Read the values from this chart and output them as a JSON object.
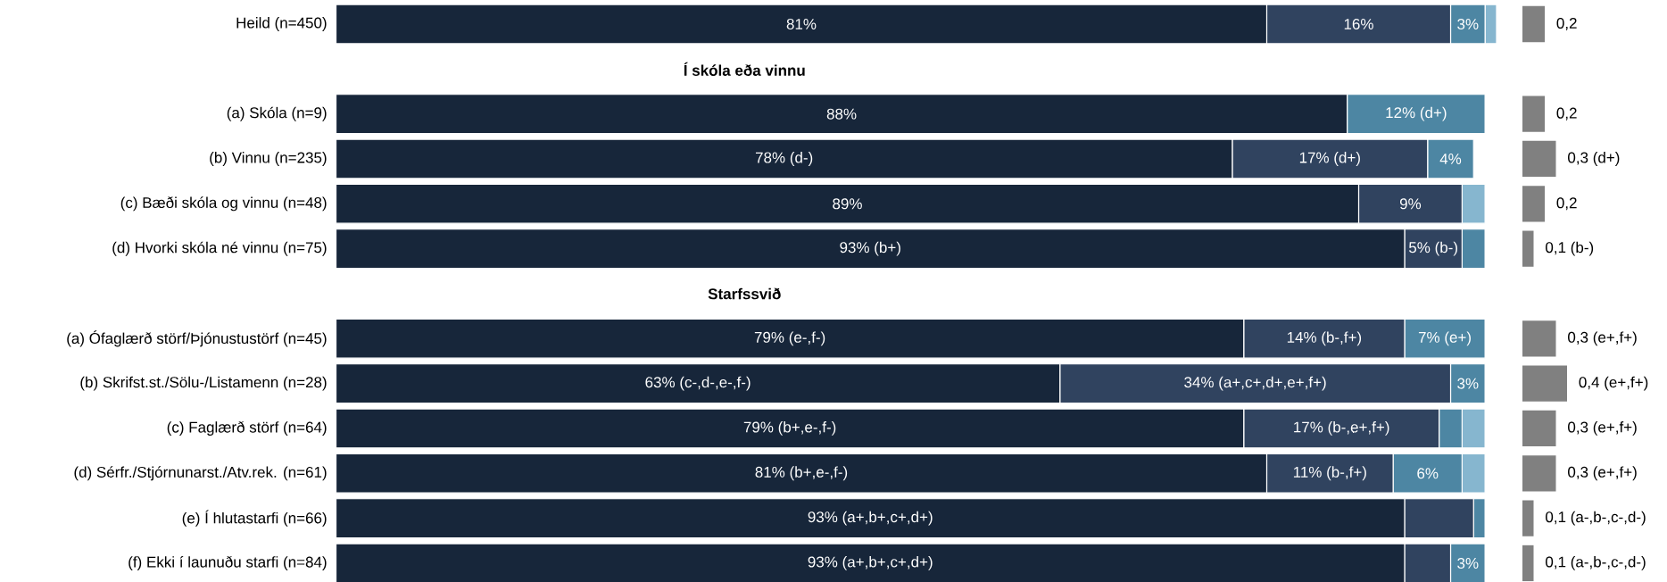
{
  "chart_data": [
    {
      "type": "bar",
      "orientation": "horizontal",
      "stacked": true,
      "tick_labels": "y",
      "categories": [
        "Heild (n=450)",
        "Í skóla eða vinnu",
        "(a) Skóla (n=9)",
        "(b) Vinnu (n=235)",
        "(c) Bæði skóla og vinnu (n=48)",
        "(d) Hvorki skóla né vinnu (n=75)",
        "Starfssvið",
        "(a) Ófaglærð störf/Þjónustustörf (n=45)",
        "(b) Skrifst.st./Sölu-/Listamenn (n=28)",
        "(c) Faglærð störf (n=64)",
        "(d) Sérfr./Stjórnunarst./Atv.rek. (n=61)",
        "(e) Í hlutastarfi (n=66)",
        "(f) Ekki í launuðu starfi (n=84)"
      ],
      "series": [
        {
          "color": "#17263a",
          "values": [
            81,
            null,
            88,
            78,
            89,
            93,
            null,
            79,
            63,
            79,
            81,
            93,
            93
          ],
          "value_labels": [
            "81%",
            null,
            "88%",
            "78% (d-)",
            "89%",
            "93% (b+)",
            null,
            "79% (e-,f-)",
            "63% (c-,d-,e-,f-)",
            "79% (b+,e-,f-)",
            "81% (b+,e-,f-)",
            "93% (a+,b+,c+,d+)",
            "93% (a+,b+,c+,d+)"
          ]
        },
        {
          "color": "#30435f",
          "values": [
            16,
            null,
            null,
            17,
            9,
            5,
            null,
            14,
            34,
            17,
            11,
            6,
            4
          ],
          "value_labels": [
            "16%",
            null,
            null,
            "17% (d+)",
            "9%",
            "5% (b-)",
            null,
            "14% (b-,f+)",
            "34% (a+,c+,d+,e+,f+)",
            "17% (b-,e+,f+)",
            "11% (b-,f+)",
            null,
            null
          ]
        },
        {
          "color": "#4d86a3",
          "values": [
            3,
            null,
            12,
            4,
            null,
            2,
            null,
            7,
            3,
            2,
            6,
            1,
            3
          ],
          "value_labels": [
            "3%",
            null,
            "12% (d+)",
            "4%",
            null,
            null,
            null,
            "7% (e+)",
            "3%",
            null,
            "6%",
            null,
            "3%"
          ]
        },
        {
          "color": "#86b6cf",
          "values": [
            1,
            null,
            null,
            null,
            2,
            null,
            null,
            null,
            null,
            2,
            2,
            null,
            null
          ]
        }
      ]
    },
    {
      "type": "bar",
      "orientation": "horizontal",
      "tick_labels": false,
      "color": "#808080",
      "categories": [
        null,
        null,
        null,
        null,
        null,
        null,
        null,
        null,
        null,
        null,
        null,
        null,
        null
      ],
      "values": [
        0.2,
        null,
        0.2,
        0.3,
        0.2,
        0.1,
        null,
        0.3,
        0.4,
        0.3,
        0.3,
        0.1,
        0.1
      ],
      "value_labels": [
        "0,2",
        null,
        "0,2",
        "0,3 (d+)",
        "0,2",
        "0,1 (b-)",
        null,
        "0,3 (e+,f+)",
        "0,4 (e+,f+)",
        "0,3 (e+,f+)",
        "0,3 (e+,f+)",
        "0,1 (a-,b-,c-,d-)",
        "0,1 (a-,b-,c-,d-)"
      ]
    }
  ]
}
